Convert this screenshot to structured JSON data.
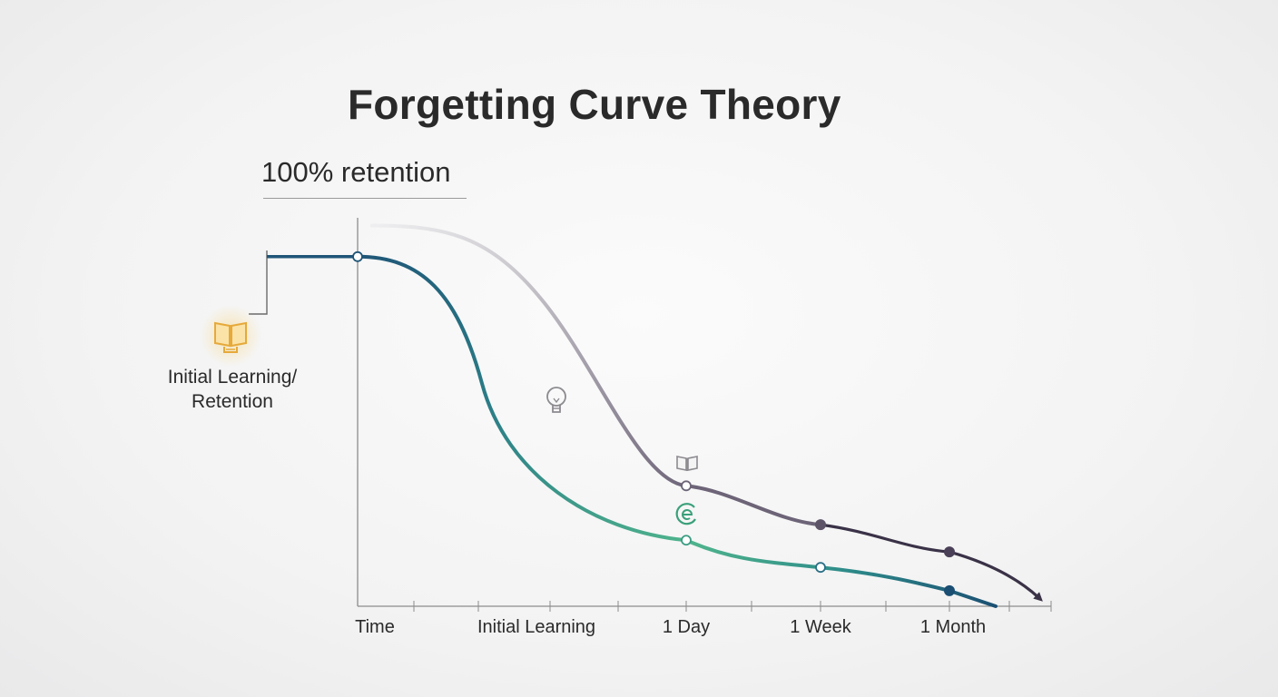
{
  "title": "Forgetting Curve Theory",
  "retention_label": "100% retention",
  "side_label": {
    "line1": "Initial Learning/",
    "line2": "Retention"
  },
  "colors": {
    "primary_start": "#1f5577",
    "primary_end": "#4fb48c",
    "review_curve": "#6d6478",
    "review_curve_fade": "#e2e0e4",
    "axis": "#8c8c8c",
    "icon_glow": "#f2b84b"
  },
  "icons": [
    "book-icon-glowing",
    "lightbulb-icon",
    "book-icon",
    "refresh-e-icon"
  ],
  "chart_data": {
    "type": "line",
    "title": "Forgetting Curve Theory",
    "xlabel": "",
    "ylabel": "",
    "x_ticks": [
      "Time",
      "Initial Learning",
      "1 Day",
      "1 Week",
      "1 Month"
    ],
    "x": [
      "Time",
      "Initial Learning",
      "1 Day",
      "1 Week",
      "1 Month"
    ],
    "ylim": [
      0,
      100
    ],
    "grid": false,
    "series": [
      {
        "values": [
          90,
          48,
          17,
          10,
          4
        ]
      },
      {
        "values": [
          98,
          78,
          31,
          21,
          14
        ]
      }
    ]
  }
}
